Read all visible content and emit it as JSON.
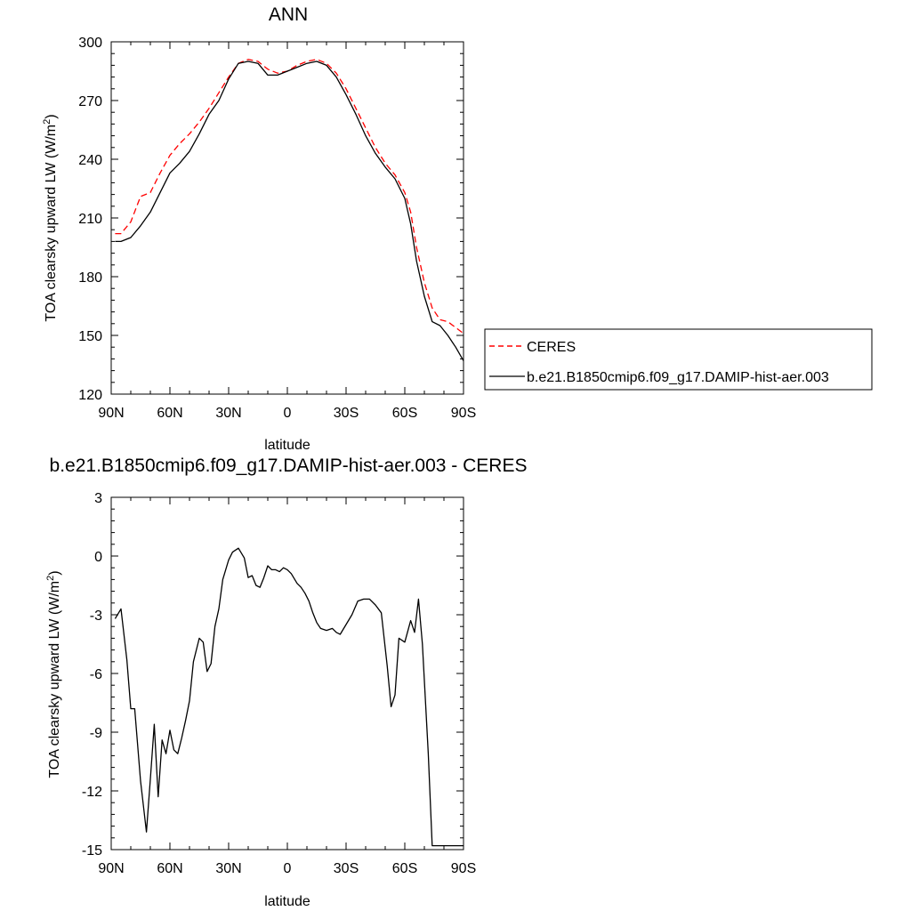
{
  "chart_data": [
    {
      "type": "line",
      "title": "ANN",
      "xlabel": "latitude",
      "ylabel": "TOA clearsky upward LW (W/m",
      "ylabel_sup": "2",
      "ylabel_end": ")",
      "xlim": [
        90,
        -90
      ],
      "ylim": [
        120,
        300
      ],
      "x_ticks": [
        90,
        60,
        30,
        0,
        -30,
        -60,
        -90
      ],
      "x_tick_labels": [
        "90N",
        "60N",
        "30N",
        "0",
        "30S",
        "60S",
        "90S"
      ],
      "y_ticks": [
        120,
        150,
        180,
        210,
        240,
        270,
        300
      ],
      "y_tick_labels": [
        "120",
        "150",
        "180",
        "210",
        "240",
        "270",
        "300"
      ],
      "grid": false,
      "legend_placement": "right",
      "series": [
        {
          "name": "CERES",
          "color": "#ff0000",
          "dash": "dashed",
          "x": [
            88,
            85,
            80,
            75,
            70,
            65,
            60,
            55,
            50,
            45,
            40,
            35,
            30,
            25,
            20,
            15,
            10,
            5,
            0,
            -5,
            -10,
            -15,
            -20,
            -25,
            -30,
            -35,
            -40,
            -45,
            -50,
            -55,
            -60,
            -63,
            -66,
            -70,
            -74,
            -78,
            -82,
            -86,
            -90
          ],
          "y": [
            202,
            202,
            208,
            221,
            223,
            233,
            242,
            248,
            253,
            259,
            266,
            274,
            282,
            289,
            291,
            290,
            286,
            284,
            285,
            288,
            290,
            291,
            289,
            284,
            276,
            266,
            256,
            246,
            238,
            232,
            223,
            213,
            195,
            177,
            164,
            158,
            157,
            154,
            151
          ]
        },
        {
          "name": "b.e21.B1850cmip6.f09_g17.DAMIP-hist-aer.003",
          "color": "#000000",
          "dash": "solid",
          "x": [
            88,
            85,
            80,
            75,
            70,
            65,
            60,
            55,
            50,
            45,
            40,
            35,
            30,
            25,
            20,
            15,
            10,
            5,
            0,
            -5,
            -10,
            -15,
            -20,
            -25,
            -30,
            -35,
            -40,
            -45,
            -50,
            -55,
            -60,
            -63,
            -66,
            -70,
            -74,
            -78,
            -82,
            -86,
            -90
          ],
          "y": [
            198,
            198,
            200,
            206,
            213,
            223,
            233,
            238,
            244,
            253,
            263,
            270,
            281,
            289,
            290,
            289,
            283,
            283,
            285,
            287,
            289,
            290,
            288,
            282,
            273,
            263,
            252,
            243,
            236,
            230,
            220,
            207,
            188,
            170,
            157,
            155,
            150,
            144,
            137
          ]
        }
      ]
    },
    {
      "type": "line",
      "title": "b.e21.B1850cmip6.f09_g17.DAMIP-hist-aer.003 - CERES",
      "xlabel": "latitude",
      "ylabel": "TOA clearsky upward LW (W/m",
      "ylabel_sup": "2",
      "ylabel_end": ")",
      "xlim": [
        90,
        -90
      ],
      "ylim": [
        -15,
        3
      ],
      "x_ticks": [
        90,
        60,
        30,
        0,
        -30,
        -60,
        -90
      ],
      "x_tick_labels": [
        "90N",
        "60N",
        "30N",
        "0",
        "30S",
        "60S",
        "90S"
      ],
      "y_ticks": [
        -15,
        -12,
        -9,
        -6,
        -3,
        0,
        3
      ],
      "y_tick_labels": [
        "-15",
        "-12",
        "-9",
        "-6",
        "-3",
        "0",
        "3"
      ],
      "grid": false,
      "series": [
        {
          "color": "#000000",
          "dash": "solid",
          "x": [
            88,
            85,
            82,
            80,
            78,
            75,
            72,
            70,
            68,
            66,
            64,
            62,
            60,
            58,
            56,
            54,
            52,
            50,
            48,
            45,
            43,
            41,
            39,
            37,
            35,
            33,
            30,
            28,
            25,
            22,
            20,
            18,
            16,
            14,
            12,
            10,
            8,
            6,
            4,
            2,
            0,
            -2,
            -5,
            -7,
            -9,
            -11,
            -13,
            -15,
            -17,
            -20,
            -23,
            -25,
            -27,
            -30,
            -33,
            -36,
            -39,
            -42,
            -45,
            -48,
            -51,
            -53,
            -55,
            -57,
            -60,
            -63,
            -65,
            -67,
            -69,
            -72,
            -74,
            -76,
            -78,
            -80,
            -82,
            -84,
            -86,
            -88,
            -90
          ],
          "y": [
            -3.2,
            -2.7,
            -5.3,
            -7.8,
            -7.8,
            -11.5,
            -14.1,
            -11.4,
            -8.6,
            -12.3,
            -9.4,
            -10.1,
            -8.9,
            -9.9,
            -10.1,
            -9.3,
            -8.4,
            -7.4,
            -5.4,
            -4.2,
            -4.4,
            -5.9,
            -5.5,
            -3.6,
            -2.7,
            -1.2,
            -0.2,
            0.2,
            0.4,
            -0.1,
            -1.1,
            -1.0,
            -1.5,
            -1.6,
            -1.1,
            -0.5,
            -0.7,
            -0.7,
            -0.8,
            -0.6,
            -0.7,
            -0.9,
            -1.4,
            -1.6,
            -1.9,
            -2.3,
            -2.9,
            -3.4,
            -3.7,
            -3.8,
            -3.7,
            -3.9,
            -4.0,
            -3.5,
            -3.0,
            -2.3,
            -2.2,
            -2.2,
            -2.5,
            -2.9,
            -5.6,
            -7.7,
            -7.1,
            -4.2,
            -4.4,
            -3.3,
            -3.9,
            -2.2,
            -4.5,
            -10.1,
            -14.8,
            -14.8,
            -14.8,
            -14.8,
            -14.8,
            -14.8,
            -14.8,
            -14.8,
            -14.8
          ]
        }
      ]
    }
  ]
}
